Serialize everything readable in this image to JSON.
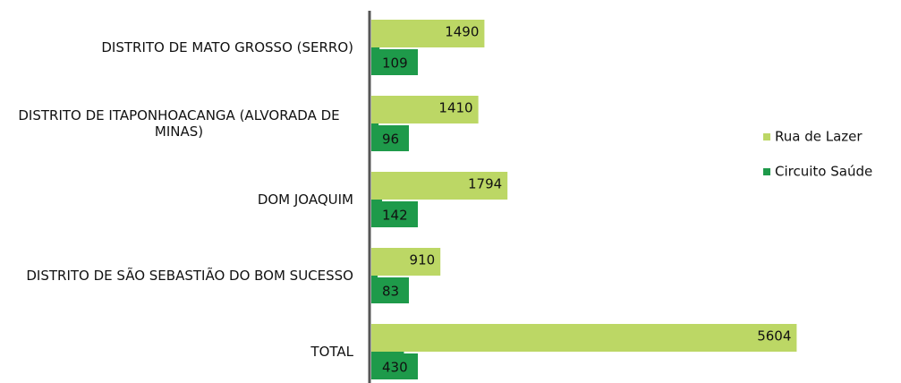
{
  "chart_data": {
    "type": "bar",
    "orientation": "horizontal",
    "categories": [
      "DISTRITO DE MATO GROSSO (SERRO)",
      "DISTRITO DE ITAPONHOACANGA (ALVORADA DE MINAS)",
      "DOM JOAQUIM",
      "DISTRITO DE SÃO SEBASTIÃO DO BOM SUCESSO",
      "TOTAL"
    ],
    "series": [
      {
        "name": "Rua de Lazer",
        "color": "#bcd765",
        "values": [
          1490,
          1410,
          1794,
          910,
          5604
        ]
      },
      {
        "name": "Circuito Saúde",
        "color": "#1e9a4a",
        "values": [
          109,
          96,
          142,
          83,
          430
        ]
      }
    ],
    "xlim": [
      0,
      6000
    ],
    "legend": "right"
  }
}
